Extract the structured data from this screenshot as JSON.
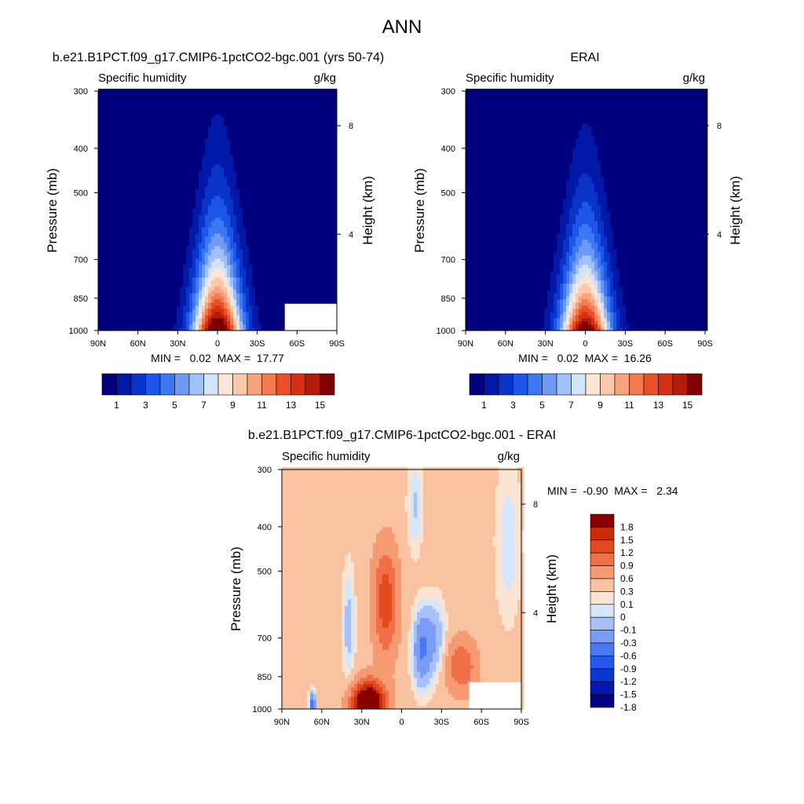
{
  "title": "ANN",
  "colors": {
    "main_scale": [
      "#00007f",
      "#0018a8",
      "#0a34c8",
      "#1c56e8",
      "#3c78f4",
      "#6e9af6",
      "#a0c0f8",
      "#d2e4fb",
      "#fde6d6",
      "#fbc8ac",
      "#f9a27e",
      "#f57a50",
      "#ea5028",
      "#d63010",
      "#b21c08",
      "#7e0000"
    ],
    "diff_scale": [
      "#000086",
      "#0018b0",
      "#0a36d2",
      "#2258ec",
      "#4878f2",
      "#7a9cf4",
      "#a8c0f8",
      "#d6e6fc",
      "#fce4d2",
      "#f9c2a0",
      "#f69a74",
      "#f06e48",
      "#e24a20",
      "#c82c08",
      "#8a0000"
    ]
  },
  "chart_data": [
    {
      "type": "contour",
      "subtitle": "b.e21.B1PCT.f09_g17.CMIP6-1pctCO2-bgc.001 (yrs 50-74)",
      "field_label": "Specific humidity",
      "units": "g/kg",
      "ylabel": "Pressure (mb)",
      "y2label": "Height (km)",
      "x_ticks": [
        "90N",
        "60N",
        "30N",
        "0",
        "30S",
        "60S",
        "90S"
      ],
      "y_ticks": [
        "300",
        "400",
        "500",
        "700",
        "850",
        "1000"
      ],
      "y2_ticks": [
        "8",
        "4"
      ],
      "ylim": [
        1000,
        300
      ],
      "stats": "MIN =   0.02  MAX =  17.77",
      "contour_levels": [
        1,
        2,
        3,
        4,
        5,
        6,
        7,
        8,
        9,
        10,
        11,
        12,
        13,
        14,
        15
      ],
      "colorbar_labels": [
        "1",
        "3",
        "5",
        "7",
        "9",
        "11",
        "13",
        "15"
      ]
    },
    {
      "type": "contour",
      "subtitle": "ERAI",
      "field_label": "Specific humidity",
      "units": "g/kg",
      "ylabel": "Pressure (mb)",
      "y2label": "Height (km)",
      "x_ticks": [
        "90N",
        "60N",
        "30N",
        "0",
        "30S",
        "60S",
        "90S"
      ],
      "y_ticks": [
        "300",
        "400",
        "500",
        "700",
        "850",
        "1000"
      ],
      "y2_ticks": [
        "8",
        "4"
      ],
      "ylim": [
        1000,
        300
      ],
      "stats": "MIN =   0.02  MAX =  16.26",
      "contour_levels": [
        1,
        2,
        3,
        4,
        5,
        6,
        7,
        8,
        9,
        10,
        11,
        12,
        13,
        14,
        15
      ],
      "colorbar_labels": [
        "1",
        "3",
        "5",
        "7",
        "9",
        "11",
        "13",
        "15"
      ]
    },
    {
      "type": "contour",
      "subtitle": "b.e21.B1PCT.f09_g17.CMIP6-1pctCO2-bgc.001 - ERAI",
      "field_label": "Specific humidity",
      "units": "g/kg",
      "ylabel": "Pressure (mb)",
      "y2label": "Height (km)",
      "x_ticks": [
        "90N",
        "60N",
        "30N",
        "0",
        "30S",
        "60S",
        "90S"
      ],
      "y_ticks": [
        "300",
        "400",
        "500",
        "700",
        "850",
        "1000"
      ],
      "y2_ticks": [
        "8",
        "4"
      ],
      "ylim": [
        1000,
        300
      ],
      "stats": "MIN =  -0.90  MAX =   2.34",
      "contour_levels": [
        -1.8,
        -1.5,
        -1.2,
        -0.9,
        -0.6,
        -0.3,
        -0.1,
        0,
        0.1,
        0.3,
        0.6,
        0.9,
        1.2,
        1.5,
        1.8
      ],
      "colorbar_labels": [
        "1.8",
        "1.5",
        "1.2",
        "0.9",
        "0.6",
        "0.3",
        "0.1",
        "0",
        "-0.1",
        "-0.3",
        "-0.6",
        "-0.9",
        "-1.2",
        "-1.5",
        "-1.8"
      ]
    }
  ]
}
